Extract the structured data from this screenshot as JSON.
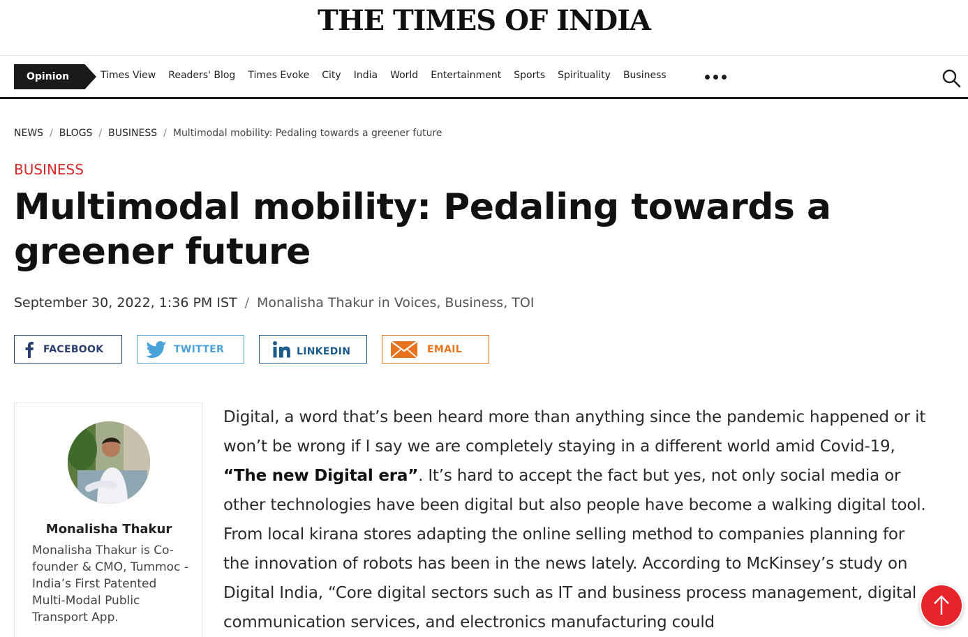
{
  "masthead": {
    "logo": "THE TIMES OF INDIA"
  },
  "nav": {
    "opinion_label": "Opinion",
    "items": [
      "Times View",
      "Readers' Blog",
      "Times Evoke",
      "City",
      "India",
      "World",
      "Entertainment",
      "Sports",
      "Spirituality",
      "Business"
    ],
    "more_icon": "more-dots-icon",
    "search_icon": "search-icon"
  },
  "breadcrumb": {
    "items": [
      "NEWS",
      "BLOGS",
      "BUSINESS"
    ],
    "separator": "/",
    "current": "Multimodal mobility: Pedaling towards a greener future"
  },
  "article": {
    "section": "BUSINESS",
    "headline": "Multimodal mobility: Pedaling towards a greener future",
    "date": "September 30, 2022, 1:36 PM IST",
    "meta_separator": "/",
    "byline": "Monalisha Thakur in Voices, Business, TOI",
    "body_intro": " Digital, a word that’s been heard more than anything since the pandemic happened or it won’t be wrong if I say we are completely staying in a different world amid Covid-19, ",
    "body_bold": "“The new Digital era”",
    "body_rest": ". It’s hard to accept the fact but yes, not only social media or other technologies have been digital but also people have become a walking digital tool. From local kirana stores adapting the online selling method to companies planning for the innovation of robots has been in the news lately. According to McKinsey’s study on Digital India, “Core digital sectors such as IT and business process management, digital communication services, and electronics manufacturing could"
  },
  "share": {
    "facebook": "FACEBOOK",
    "twitter": "TWITTER",
    "linkedin": "LINKEDIN",
    "email": "EMAIL"
  },
  "author": {
    "name": "Monalisha Thakur",
    "bio": "Monalisha Thakur is Co-founder & CMO, Tummoc - India’s First Patented Multi-Modal Public Transport App."
  },
  "colors": {
    "section": "#d42a2a",
    "facebook": "#2a3f6b",
    "twitter": "#4aa3d8",
    "linkedin": "#1d5c8a",
    "email": "#e8731f",
    "scroll_top": "#e5252a"
  }
}
